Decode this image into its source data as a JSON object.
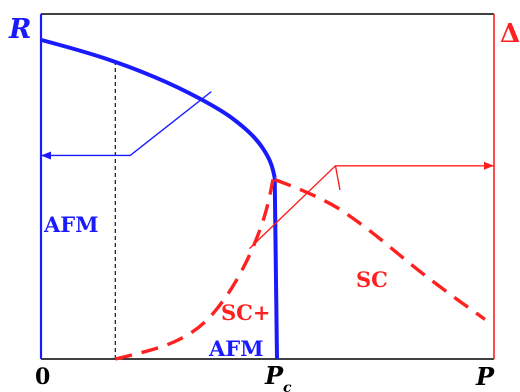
{
  "chart_data": {
    "type": "line",
    "title": "",
    "axes": {
      "x_label": "P",
      "left_label": "R",
      "right_label": "Δ",
      "origin_label": "0",
      "critical_label": "P",
      "critical_subscript": "c"
    },
    "regions": {
      "afm": "AFM",
      "sc_afm_line1": "SC+",
      "sc_afm_line2": "AFM",
      "sc": "SC"
    },
    "colors": {
      "afm": "#1a1aff",
      "sc": "#ff2020",
      "axis": "#000000",
      "guide": "#000000"
    },
    "x_range": [
      0,
      1
    ],
    "y_range": [
      0,
      1
    ],
    "x_critical": 0.516,
    "x_dashed_guide": 0.164,
    "series": [
      {
        "kind": "solid",
        "color_key": "afm",
        "axis": "left",
        "x": [
          0.0,
          0.1,
          0.2,
          0.3,
          0.4,
          0.45,
          0.48,
          0.5,
          0.51,
          0.516
        ],
        "y": [
          0.925,
          0.89,
          0.845,
          0.79,
          0.72,
          0.67,
          0.63,
          0.59,
          0.56,
          0.525
        ]
      },
      {
        "kind": "solid",
        "color_key": "afm",
        "axis": "left",
        "x": [
          0.516,
          0.521
        ],
        "y": [
          0.525,
          0.0
        ]
      },
      {
        "kind": "dashed",
        "color_key": "sc",
        "axis": "right",
        "x": [
          0.164,
          0.23,
          0.3,
          0.36,
          0.41,
          0.45,
          0.48,
          0.5,
          0.512
        ],
        "y": [
          0.0,
          0.02,
          0.05,
          0.1,
          0.18,
          0.27,
          0.36,
          0.44,
          0.52
        ]
      },
      {
        "kind": "dashed",
        "color_key": "sc",
        "axis": "right",
        "x": [
          0.516,
          0.62,
          0.72,
          0.82,
          0.9,
          0.98
        ],
        "y": [
          0.52,
          0.47,
          0.38,
          0.27,
          0.19,
          0.115
        ]
      }
    ],
    "arrows": [
      {
        "color_key": "afm",
        "points": [
          [
            0.376,
            0.775
          ],
          [
            0.197,
            0.59
          ],
          [
            0.0,
            0.59
          ]
        ],
        "head": "left"
      },
      {
        "color_key": "sc",
        "points": [
          [
            0.46,
            0.32
          ],
          [
            0.65,
            0.56
          ],
          [
            1.0,
            0.56
          ]
        ],
        "head": "right"
      },
      {
        "color_key": "sc",
        "points": [
          [
            0.65,
            0.56
          ],
          [
            0.66,
            0.49
          ]
        ],
        "head": "none"
      }
    ]
  }
}
